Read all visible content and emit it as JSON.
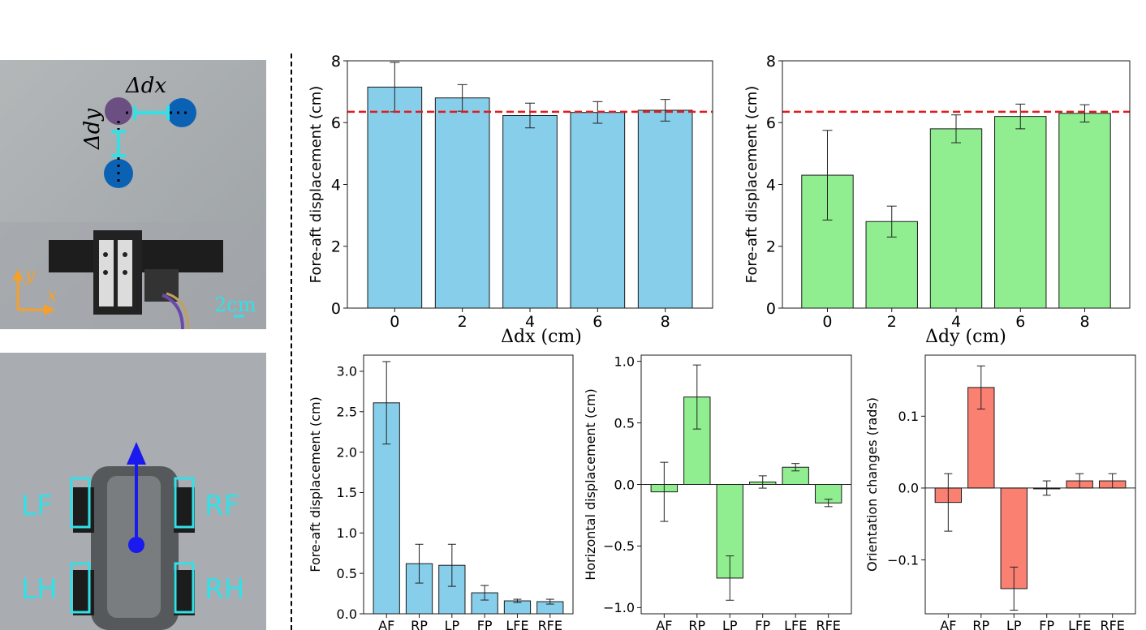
{
  "colors": {
    "blue": "#87ceeb",
    "green": "#90ee90",
    "red": "#fa8072",
    "ref_line": "#e41a1c",
    "cyan": "#33e0e6",
    "robot_blue": "#0b5fb0",
    "arrow_orange": "#f5a02a",
    "arrow_blue": "#1a1aee"
  },
  "photos": {
    "top": {
      "label_dx": "Δdx",
      "label_dy": "Δdy",
      "label_x": "x",
      "label_y": "y",
      "scale": "2cm"
    },
    "bottom": {
      "legs": [
        "LF",
        "RF",
        "LH",
        "RH"
      ]
    }
  },
  "chart_data": [
    {
      "type": "bar",
      "id": "dx",
      "categories": [
        "0",
        "2",
        "4",
        "6",
        "8"
      ],
      "values": [
        7.15,
        6.8,
        6.23,
        6.33,
        6.4
      ],
      "errors": [
        0.8,
        0.43,
        0.4,
        0.35,
        0.35
      ],
      "xlabel": "Δdx (cm)",
      "ylabel": "Fore-aft displacement (cm)",
      "ylim": [
        0,
        8
      ],
      "yticks": [
        0,
        2,
        4,
        6,
        8
      ],
      "ytick_labels": [
        "0",
        "2",
        "4",
        "6",
        "8"
      ],
      "ref_line": 6.35,
      "color": "blue",
      "grid": false
    },
    {
      "type": "bar",
      "id": "dy",
      "categories": [
        "0",
        "2",
        "4",
        "6",
        "8"
      ],
      "values": [
        4.3,
        2.8,
        5.8,
        6.2,
        6.3
      ],
      "errors": [
        1.45,
        0.5,
        0.45,
        0.4,
        0.28
      ],
      "xlabel": "Δdy (cm)",
      "ylabel": "Fore-aft displacement (cm)",
      "ylim": [
        0,
        8
      ],
      "yticks": [
        0,
        2,
        4,
        6,
        8
      ],
      "ytick_labels": [
        "0",
        "2",
        "4",
        "6",
        "8"
      ],
      "ref_line": 6.35,
      "color": "green",
      "grid": false
    },
    {
      "type": "bar",
      "id": "foreaft",
      "categories": [
        "AF",
        "RP",
        "LP",
        "FP",
        "LFE",
        "RFE"
      ],
      "values": [
        2.61,
        0.62,
        0.6,
        0.26,
        0.16,
        0.15
      ],
      "errors": [
        0.51,
        0.24,
        0.26,
        0.09,
        0.02,
        0.03
      ],
      "xlabel": "",
      "ylabel": "Fore-aft displacement (cm)",
      "ylim": [
        0,
        3.2
      ],
      "yticks": [
        0,
        0.5,
        1,
        1.5,
        2,
        2.5,
        3
      ],
      "ytick_labels": [
        "0.0",
        "0.5",
        "1.0",
        "1.5",
        "2.0",
        "2.5",
        "3.0"
      ],
      "color": "blue",
      "grid": false
    },
    {
      "type": "bar",
      "id": "horizontal",
      "categories": [
        "AF",
        "RP",
        "LP",
        "FP",
        "LFE",
        "RFE"
      ],
      "values": [
        -0.06,
        0.71,
        -0.76,
        0.02,
        0.14,
        -0.15
      ],
      "errors": [
        0.24,
        0.26,
        0.18,
        0.05,
        0.03,
        0.03
      ],
      "xlabel": "",
      "ylabel": "Horizontal displacement (cm)",
      "ylim": [
        -1.05,
        1.05
      ],
      "yticks": [
        -1,
        -0.5,
        0,
        0.5,
        1
      ],
      "ytick_labels": [
        "−1.0",
        "−0.5",
        "0.0",
        "0.5",
        "1.0"
      ],
      "color": "green",
      "grid": false
    },
    {
      "type": "bar",
      "id": "orientation",
      "categories": [
        "AF",
        "RP",
        "LP",
        "FP",
        "LFE",
        "RFE"
      ],
      "values": [
        -0.02,
        0.14,
        -0.14,
        0.0,
        0.01,
        0.01
      ],
      "errors": [
        0.04,
        0.03,
        0.03,
        0.01,
        0.01,
        0.01
      ],
      "xlabel": "",
      "ylabel": "Orientation changes (rads)",
      "ylim": [
        -0.175,
        0.185
      ],
      "yticks": [
        -0.1,
        0,
        0.1
      ],
      "ytick_labels": [
        "−0.1",
        "0.0",
        "0.1"
      ],
      "color": "red",
      "grid": false
    }
  ]
}
